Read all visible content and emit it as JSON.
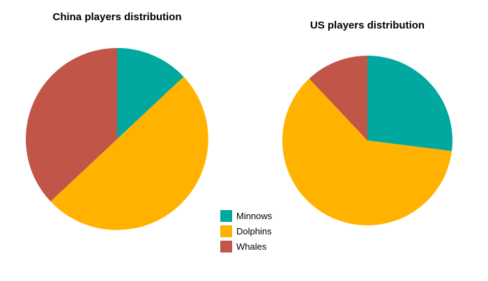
{
  "chart_data": [
    {
      "type": "pie",
      "title": "China players distribution",
      "labels": [
        "Minnows",
        "Dolphins",
        "Whales"
      ],
      "values": [
        13,
        50,
        37
      ],
      "colors": [
        "#00A8A0",
        "#FFB300",
        "#C05548"
      ],
      "start_angle": "top",
      "direction": "clockwise",
      "legend_position": "bottom-center-shared"
    },
    {
      "type": "pie",
      "title": "US players distribution",
      "labels": [
        "Minnows",
        "Dolphins",
        "Whales"
      ],
      "values": [
        27,
        61,
        12
      ],
      "colors": [
        "#00A8A0",
        "#FFB300",
        "#C05548"
      ],
      "start_angle": "top",
      "direction": "clockwise",
      "legend_position": "bottom-center-shared"
    }
  ],
  "legend": {
    "items": [
      {
        "label": "Minnows",
        "color": "#00A8A0"
      },
      {
        "label": "Dolphins",
        "color": "#FFB300"
      },
      {
        "label": "Whales",
        "color": "#C05548"
      }
    ]
  }
}
